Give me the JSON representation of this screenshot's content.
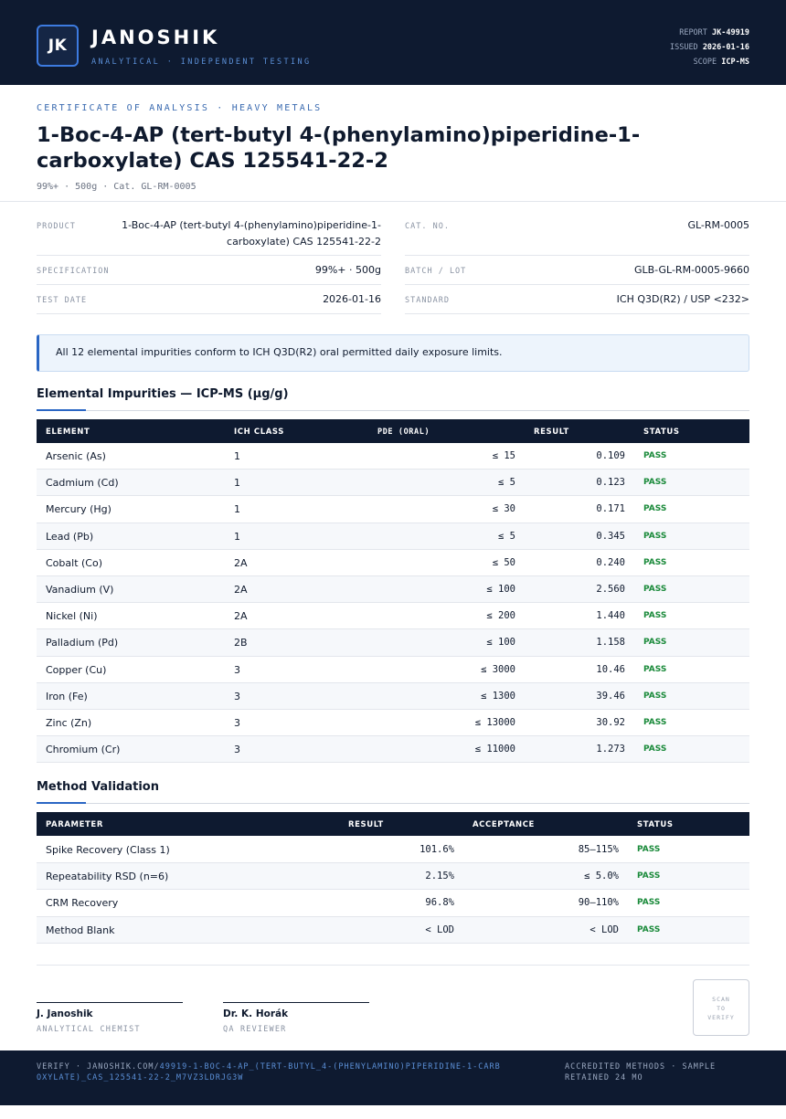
{
  "header": {
    "logo": "JK",
    "brand": "JANOSHIK",
    "tagline": "ANALYTICAL · INDEPENDENT TESTING",
    "report_label": "REPORT",
    "report_value": "JK-49919",
    "issued_label": "ISSUED",
    "issued_value": "2026-01-16",
    "scope_label": "SCOPE",
    "scope_value": "ICP-MS"
  },
  "title_block": {
    "eyebrow": "CERTIFICATE OF ANALYSIS · HEAVY METALS",
    "title": "1-Boc-4-AP (tert-butyl 4-(phenylamino)piperidine-1-carboxylate) CAS 125541-22-2",
    "subtitle": "99%+ · 500g  ·  Cat. GL-RM-0005"
  },
  "info": {
    "product_label": "PRODUCT",
    "product_value": "1-Boc-4-AP (tert-butyl 4-(phenylamino)piperidine-1-carboxylate) CAS 125541-22-2",
    "spec_label": "SPECIFICATION",
    "spec_value": "99%+ · 500g",
    "date_label": "TEST DATE",
    "date_value": "2026-01-16",
    "cat_label": "CAT. NO.",
    "cat_value": "GL-RM-0005",
    "batch_label": "BATCH / LOT",
    "batch_value": "GLB-GL-RM-0005-9660",
    "standard_label": "STANDARD",
    "standard_value": "ICH Q3D(R2) / USP <232>"
  },
  "notice": "All 12 elemental impurities conform to ICH Q3D(R2) oral permitted daily exposure limits.",
  "impurities": {
    "title": "Elemental Impurities — ICP-MS (µg/g)",
    "headers": {
      "element": "ELEMENT",
      "class": "ICH CLASS",
      "pde": "PDE (ORAL)",
      "result": "RESULT",
      "status": "STATUS"
    },
    "rows": [
      {
        "element": "Arsenic (As)",
        "class": "1",
        "pde": "≤ 15",
        "result": "0.109",
        "status": "PASS"
      },
      {
        "element": "Cadmium (Cd)",
        "class": "1",
        "pde": "≤ 5",
        "result": "0.123",
        "status": "PASS"
      },
      {
        "element": "Mercury (Hg)",
        "class": "1",
        "pde": "≤ 30",
        "result": "0.171",
        "status": "PASS"
      },
      {
        "element": "Lead (Pb)",
        "class": "1",
        "pde": "≤ 5",
        "result": "0.345",
        "status": "PASS"
      },
      {
        "element": "Cobalt (Co)",
        "class": "2A",
        "pde": "≤ 50",
        "result": "0.240",
        "status": "PASS"
      },
      {
        "element": "Vanadium (V)",
        "class": "2A",
        "pde": "≤ 100",
        "result": "2.560",
        "status": "PASS"
      },
      {
        "element": "Nickel (Ni)",
        "class": "2A",
        "pde": "≤ 200",
        "result": "1.440",
        "status": "PASS"
      },
      {
        "element": "Palladium (Pd)",
        "class": "2B",
        "pde": "≤ 100",
        "result": "1.158",
        "status": "PASS"
      },
      {
        "element": "Copper (Cu)",
        "class": "3",
        "pde": "≤ 3000",
        "result": "10.46",
        "status": "PASS"
      },
      {
        "element": "Iron (Fe)",
        "class": "3",
        "pde": "≤ 1300",
        "result": "39.46",
        "status": "PASS"
      },
      {
        "element": "Zinc (Zn)",
        "class": "3",
        "pde": "≤ 13000",
        "result": "30.92",
        "status": "PASS"
      },
      {
        "element": "Chromium (Cr)",
        "class": "3",
        "pde": "≤ 11000",
        "result": "1.273",
        "status": "PASS"
      }
    ]
  },
  "validation": {
    "title": "Method Validation",
    "headers": {
      "parameter": "PARAMETER",
      "result": "RESULT",
      "acceptance": "ACCEPTANCE",
      "status": "STATUS"
    },
    "rows": [
      {
        "parameter": "Spike Recovery (Class 1)",
        "result": "101.6%",
        "acceptance": "85–115%",
        "status": "PASS"
      },
      {
        "parameter": "Repeatability RSD (n=6)",
        "result": "2.15%",
        "acceptance": "≤ 5.0%",
        "status": "PASS"
      },
      {
        "parameter": "CRM Recovery",
        "result": "96.8%",
        "acceptance": "90–110%",
        "status": "PASS"
      },
      {
        "parameter": "Method Blank",
        "result": "< LOD",
        "acceptance": "< LOD",
        "status": "PASS"
      }
    ]
  },
  "signatures": [
    {
      "name": "J. Janoshik",
      "role": "ANALYTICAL CHEMIST"
    },
    {
      "name": "Dr. K. Horák",
      "role": "QA REVIEWER"
    }
  ],
  "qr": {
    "line1": "SCAN",
    "line2": "TO",
    "line3": "VERIFY"
  },
  "footer": {
    "verify_prefix": "VERIFY · JANOSHIK.COM/",
    "verify_url": "49919-1-BOC-4-AP_(TERT-BUTYL_4-(PHENYLAMINO)PIPERIDINE-1-CARBOXYLATE)_CAS_125541-22-2_M7VZ3LDRJG3W",
    "right": "ACCREDITED METHODS · SAMPLE RETAINED 24 MO"
  },
  "colors": {
    "navy": "#0e1a30",
    "accent": "#2a66c4",
    "pass": "#1a8a3a"
  }
}
